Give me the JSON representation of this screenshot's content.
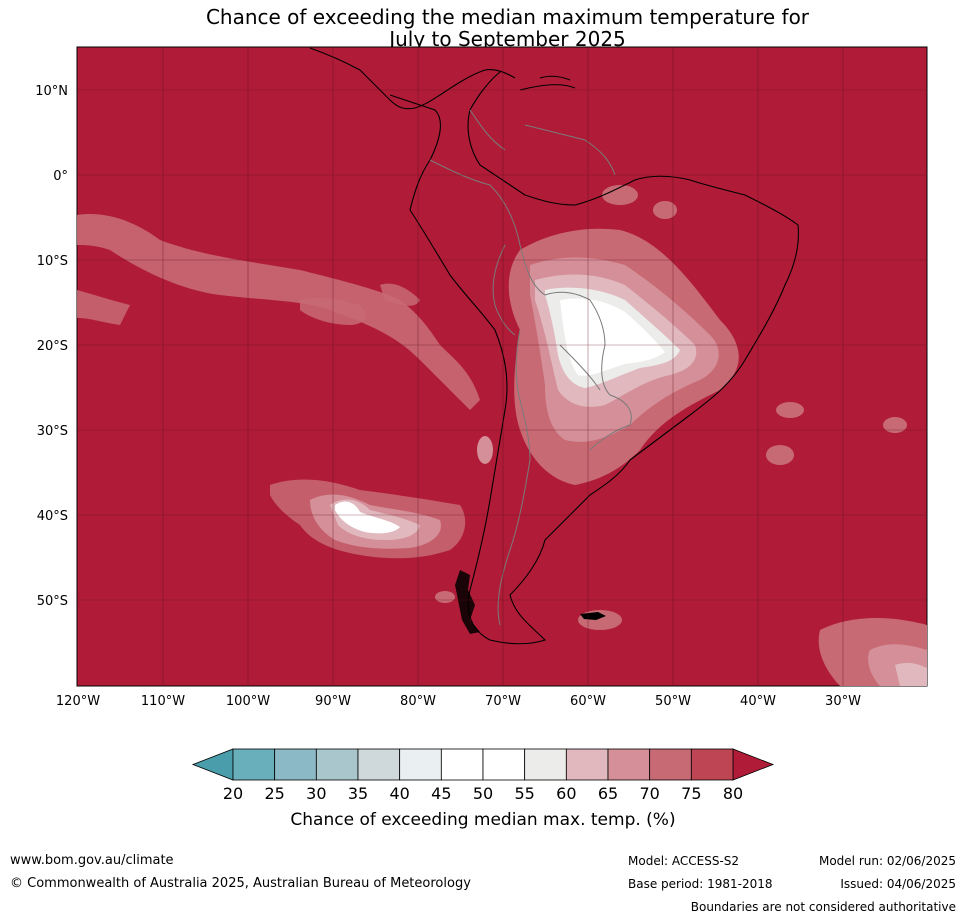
{
  "title": {
    "line1": "Chance of exceeding the median maximum temperature for",
    "line2": "July to September 2025"
  },
  "map": {
    "background_color": "#b01c37",
    "lat_labels": [
      "10°N",
      "0°",
      "10°S",
      "20°S",
      "30°S",
      "40°S",
      "50°S"
    ],
    "lon_labels": [
      "120°W",
      "110°W",
      "100°W",
      "90°W",
      "80°W",
      "70°W",
      "60°W",
      "50°W",
      "40°W",
      "30°W"
    ]
  },
  "colorbar": {
    "ticks": [
      "20",
      "25",
      "30",
      "35",
      "40",
      "45",
      "50",
      "55",
      "60",
      "65",
      "70",
      "75",
      "80"
    ],
    "colors": [
      "#69aebb",
      "#8bb9c6",
      "#a9c6cc",
      "#cfd8db",
      "#eaf0f2",
      "#ffffff",
      "#ffffff",
      "#ececea",
      "#e0b8be",
      "#d48f98",
      "#c86a74",
      "#be4654"
    ],
    "below_color": "#4a9eab",
    "above_color": "#b01c37",
    "label": "Chance of exceeding median max. temp. (%)"
  },
  "footer": {
    "website": "www.bom.gov.au/climate",
    "copyright": "© Commonwealth of Australia 2025, Australian Bureau of Meteorology",
    "model": "Model: ACCESS-S2",
    "base_period": "Base period: 1981-2018",
    "model_run": "Model run: 02/06/2025",
    "issued": "Issued: 04/06/2025",
    "disclaimer": "Boundaries are not considered authoritative"
  }
}
